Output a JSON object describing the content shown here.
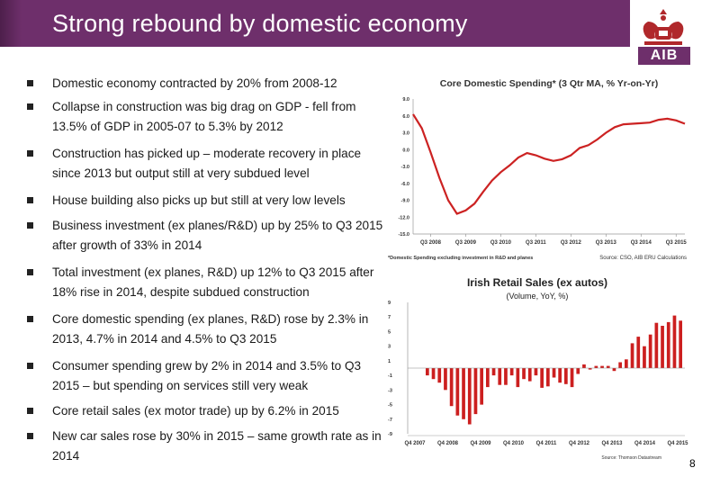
{
  "slide": {
    "title": "Strong rebound by domestic economy",
    "page_number": "8",
    "logo_text": "AIB",
    "accent_color": "#6e2f6b"
  },
  "bullets": [
    {
      "text": "Domestic economy contracted by 20% from 2008-12"
    },
    {
      "text": "Collapse in construction was big drag on GDP - fell from 13.5% of GDP in 2005-07 to 5.3% by 2012"
    },
    {
      "text": "Construction has picked up – moderate recovery in place since 2013 but output still at very subdued level"
    },
    {
      "text": "House building also picks up but still at very low levels"
    },
    {
      "text": "Business investment (ex planes/R&D) up by 25% to Q3 2015 after growth of 33% in 2014"
    },
    {
      "text": "Total investment (ex planes, R&D) up 12% to Q3 2015 after 18% rise in 2014, despite subdued construction"
    },
    {
      "text": "Core domestic spending (ex planes, R&D) rose by 2.3% in 2013, 4.7% in 2014 and 4.5% to Q3 2015"
    },
    {
      "text": "Consumer spending grew by 2% in 2014 and 3.5% to Q3 2015 – but spending on services still very weak"
    },
    {
      "text": "Core retail sales (ex motor trade) up by 6.2% in 2015"
    },
    {
      "text": "New car sales rose by 30% in 2015 – same growth rate as in 2014"
    }
  ],
  "chart_data": [
    {
      "type": "line",
      "title": "Core Domestic Spending* (3 Qtr MA, % Yr-on-Yr)",
      "footnote": "*Domestic Spending excluding investment in R&D and planes",
      "source": "Source: CSO, AIB ERU Calculations",
      "color": "#cc2222",
      "yticks": [
        "9.0",
        "6.0",
        "3.0",
        "0.0",
        "-3.0",
        "-6.0",
        "-9.0",
        "-12.0",
        "-15.0"
      ],
      "ylim": [
        -15,
        9
      ],
      "xticks": [
        "Q3 2008",
        "Q3 2009",
        "Q3 2010",
        "Q3 2011",
        "Q3 2012",
        "Q3 2013",
        "Q3 2014",
        "Q3 2015"
      ],
      "x_start": 2008.0,
      "x_end": 2015.75,
      "x": [
        2008.0,
        2008.25,
        2008.5,
        2008.75,
        2009.0,
        2009.25,
        2009.5,
        2009.75,
        2010.0,
        2010.25,
        2010.5,
        2010.75,
        2011.0,
        2011.25,
        2011.5,
        2011.75,
        2012.0,
        2012.25,
        2012.5,
        2012.75,
        2013.0,
        2013.25,
        2013.5,
        2013.75,
        2014.0,
        2014.25,
        2014.5,
        2014.75,
        2015.0,
        2015.25,
        2015.5,
        2015.75
      ],
      "values": [
        6.3,
        3.8,
        -0.5,
        -5.0,
        -9.0,
        -11.4,
        -10.8,
        -9.6,
        -7.5,
        -5.5,
        -4.0,
        -2.8,
        -1.4,
        -0.6,
        -1.0,
        -1.6,
        -2.0,
        -1.7,
        -1.0,
        0.3,
        0.8,
        1.8,
        3.0,
        4.0,
        4.5,
        4.6,
        4.7,
        4.8,
        5.3,
        5.5,
        5.2,
        4.6
      ]
    },
    {
      "type": "bar",
      "title": "Irish Retail Sales (ex autos)",
      "subtitle": "(Volume, YoY, %)",
      "source": "Source: Thomson Datastream",
      "color": "#cc1f1f",
      "yticks": [
        "9",
        "7",
        "5",
        "3",
        "1",
        "-1",
        "-3",
        "-5",
        "-7",
        "-9"
      ],
      "ylim": [
        -9,
        9
      ],
      "xticks": [
        "Q4 2007",
        "Q4 2008",
        "Q4 2009",
        "Q4 2010",
        "Q4 2011",
        "Q4 2012",
        "Q4 2013",
        "Q4 2014",
        "Q4 2015"
      ],
      "values": [
        -1.0,
        -1.5,
        -2.0,
        -3.0,
        -5.2,
        -6.5,
        -7.0,
        -7.7,
        -6.3,
        -5.0,
        -2.6,
        -1.0,
        -2.3,
        -2.3,
        -1.0,
        -2.6,
        -1.5,
        -1.8,
        -1.0,
        -2.7,
        -2.5,
        -1.3,
        -2.0,
        -2.2,
        -2.6,
        -0.8,
        0.5,
        -0.2,
        0.3,
        0.3,
        0.3,
        -0.4,
        0.8,
        1.2,
        3.4,
        4.3,
        3.0,
        4.6,
        6.2,
        5.8,
        6.3,
        7.2,
        6.5
      ]
    }
  ]
}
